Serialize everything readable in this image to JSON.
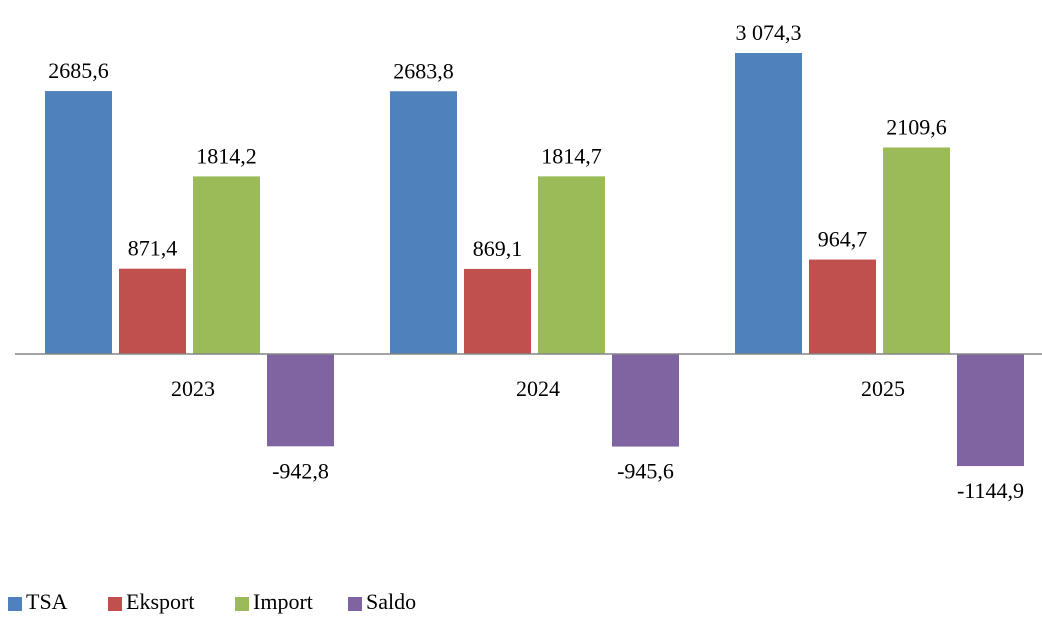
{
  "chart_data": {
    "type": "bar",
    "categories": [
      "2023",
      "2024",
      "2025"
    ],
    "series": [
      {
        "name": "TSA",
        "values": [
          2685.6,
          2683.8,
          3074.3
        ],
        "labels": [
          "2685,6",
          "2683,8",
          "3 074,3"
        ],
        "color": "#4f81bd"
      },
      {
        "name": "Eksport",
        "values": [
          871.4,
          869.1,
          964.7
        ],
        "labels": [
          "871,4",
          "869,1",
          "964,7"
        ],
        "color": "#c0504d"
      },
      {
        "name": "Import",
        "values": [
          1814.2,
          1814.7,
          2109.6
        ],
        "labels": [
          "1814,2",
          "1814,7",
          "2109,6"
        ],
        "color": "#9bbb59"
      },
      {
        "name": "Saldo",
        "values": [
          -942.8,
          -945.6,
          -1144.9
        ],
        "labels": [
          "-942,8",
          "-945,6",
          "-1144,9"
        ],
        "color": "#8064a2"
      }
    ],
    "title": "",
    "xlabel": "",
    "ylabel": "",
    "grid": false,
    "legend_position": "bottom-left",
    "data_labels": true
  }
}
